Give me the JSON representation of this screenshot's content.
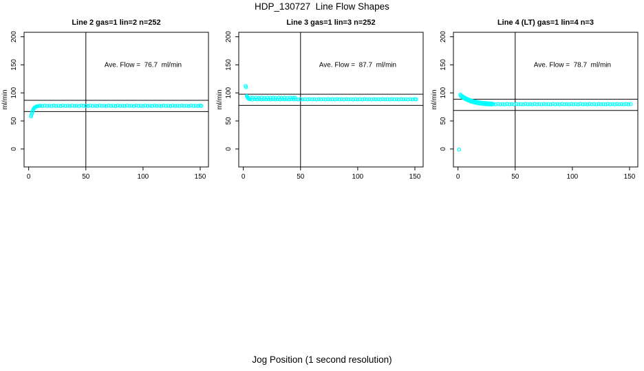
{
  "page": {
    "title": "HDP_130727  Line Flow Shapes",
    "xlabel": "Jog Position (1 second resolution)",
    "background": "#ffffff",
    "text_color": "#000000"
  },
  "chart_data": [
    {
      "type": "scatter",
      "title": "Line 2 gas=1 lin=2 n=252",
      "ylabel": "ml/min",
      "annotation": "Ave. Flow =  76.7  ml/min",
      "annotation_at": {
        "x": 100,
        "y": 150
      },
      "ave_flow_ml_min": 76.7,
      "n": 252,
      "x_ticks": [
        0,
        50,
        100,
        150
      ],
      "y_ticks": [
        0,
        50,
        100,
        150,
        200
      ],
      "x_range": [
        -4,
        157.2
      ],
      "y_range": [
        -32,
        208
      ],
      "vline_x": 50,
      "hlines": [
        86.7,
        66.7
      ],
      "marker_color": "#00FFFF",
      "grid": false,
      "points": [
        [
          2,
          58
        ],
        [
          2.4,
          60.5
        ],
        [
          2.8,
          63
        ],
        [
          3.2,
          65.5
        ],
        [
          3.6,
          68
        ],
        [
          4,
          70
        ],
        [
          4.5,
          72
        ],
        [
          5,
          73.3
        ],
        [
          5.5,
          74.3
        ],
        [
          6,
          75
        ],
        [
          6.6,
          75.6
        ],
        [
          7.2,
          76
        ],
        [
          8,
          76.4
        ],
        [
          9,
          76.7
        ],
        [
          10,
          77.1
        ],
        [
          12,
          76.6
        ],
        [
          14,
          77.3
        ],
        [
          16,
          76.8
        ],
        [
          18,
          77.1
        ],
        [
          20,
          76.6
        ],
        [
          22,
          77.3
        ],
        [
          24,
          76.8
        ],
        [
          26,
          77.1
        ],
        [
          28,
          76.6
        ],
        [
          30,
          77.3
        ],
        [
          32,
          76.8
        ],
        [
          34,
          77.1
        ],
        [
          36,
          76.6
        ],
        [
          38,
          77.3
        ],
        [
          40,
          76.8
        ],
        [
          42,
          77.1
        ],
        [
          44,
          76.6
        ],
        [
          46,
          77.3
        ],
        [
          48,
          76.8
        ],
        [
          50,
          77.1
        ],
        [
          52,
          76.6
        ],
        [
          54,
          77.3
        ],
        [
          56,
          76.8
        ],
        [
          58,
          77.1
        ],
        [
          60,
          76.6
        ],
        [
          62,
          77.3
        ],
        [
          64,
          76.8
        ],
        [
          66,
          77.1
        ],
        [
          68,
          76.6
        ],
        [
          70,
          77.3
        ],
        [
          72,
          76.8
        ],
        [
          74,
          77.1
        ],
        [
          76,
          76.6
        ],
        [
          78,
          77.3
        ],
        [
          80,
          76.8
        ],
        [
          82,
          77.1
        ],
        [
          84,
          76.6
        ],
        [
          86,
          77.3
        ],
        [
          88,
          76.8
        ],
        [
          90,
          77.1
        ],
        [
          92,
          76.6
        ],
        [
          94,
          77.3
        ],
        [
          96,
          76.8
        ],
        [
          98,
          77.1
        ],
        [
          100,
          76.6
        ],
        [
          102,
          77.3
        ],
        [
          104,
          76.8
        ],
        [
          106,
          77.1
        ],
        [
          108,
          76.6
        ],
        [
          110,
          77.3
        ],
        [
          112,
          76.8
        ],
        [
          114,
          77.1
        ],
        [
          116,
          76.6
        ],
        [
          118,
          77.3
        ],
        [
          120,
          76.8
        ],
        [
          122,
          77.1
        ],
        [
          124,
          76.6
        ],
        [
          126,
          77.3
        ],
        [
          128,
          76.8
        ],
        [
          130,
          77.1
        ],
        [
          132,
          76.6
        ],
        [
          134,
          77.3
        ],
        [
          136,
          76.8
        ],
        [
          138,
          77.1
        ],
        [
          140,
          76.6
        ],
        [
          142,
          77.3
        ],
        [
          144,
          76.8
        ],
        [
          146,
          77.1
        ],
        [
          148,
          76.6
        ],
        [
          150,
          77.3
        ],
        [
          151,
          76.9
        ]
      ]
    },
    {
      "type": "scatter",
      "title": "Line 3 gas=1 lin=3 n=252",
      "ylabel": "ml/min",
      "annotation": "Ave. Flow =  87.7  ml/min",
      "annotation_at": {
        "x": 100,
        "y": 150
      },
      "ave_flow_ml_min": 87.7,
      "n": 252,
      "x_ticks": [
        0,
        50,
        100,
        150
      ],
      "y_ticks": [
        0,
        50,
        100,
        150,
        200
      ],
      "x_range": [
        -4,
        157.2
      ],
      "y_range": [
        -32,
        208
      ],
      "vline_x": 50,
      "hlines": [
        97.7,
        77.7
      ],
      "marker_color": "#00FFFF",
      "grid": false,
      "points": [
        [
          2,
          112.5
        ],
        [
          2.4,
          110
        ],
        [
          3,
          94.5
        ],
        [
          3.4,
          92.8
        ],
        [
          3.8,
          91.5
        ],
        [
          4.2,
          90.3
        ],
        [
          4.6,
          89.6
        ],
        [
          5,
          89.1
        ],
        [
          6,
          91.8
        ],
        [
          8.5,
          91.4
        ],
        [
          11,
          91.7
        ],
        [
          13.5,
          91.3
        ],
        [
          16,
          91.6
        ],
        [
          18.5,
          91.2
        ],
        [
          21,
          91.6
        ],
        [
          23.5,
          91.3
        ],
        [
          26,
          91.6
        ],
        [
          28.5,
          91.2
        ],
        [
          31,
          91.5
        ],
        [
          33.5,
          91.3
        ],
        [
          36,
          91.6
        ],
        [
          38.5,
          91.2
        ],
        [
          41,
          91.5
        ],
        [
          43.5,
          91.3
        ],
        [
          45,
          91.5
        ],
        [
          6,
          88.7
        ],
        [
          8,
          88.2
        ],
        [
          10,
          88.9
        ],
        [
          12,
          88.4
        ],
        [
          14,
          88.7
        ],
        [
          16,
          88.2
        ],
        [
          18,
          88.9
        ],
        [
          20,
          88.4
        ],
        [
          22,
          88.7
        ],
        [
          24,
          88.2
        ],
        [
          26,
          88.9
        ],
        [
          28,
          88.4
        ],
        [
          30,
          88.7
        ],
        [
          32,
          88.2
        ],
        [
          34,
          88.9
        ],
        [
          36,
          88.4
        ],
        [
          38,
          88.7
        ],
        [
          40,
          88.2
        ],
        [
          42,
          88.9
        ],
        [
          44,
          88.4
        ],
        [
          46,
          88.7
        ],
        [
          48,
          88.2
        ],
        [
          50,
          88.9
        ],
        [
          52,
          88.4
        ],
        [
          54,
          88.7
        ],
        [
          56,
          88.2
        ],
        [
          58,
          88.9
        ],
        [
          60,
          88.4
        ],
        [
          62,
          88.7
        ],
        [
          64,
          88.2
        ],
        [
          66,
          88.9
        ],
        [
          68,
          88.4
        ],
        [
          70,
          88.7
        ],
        [
          72,
          88.2
        ],
        [
          74,
          88.9
        ],
        [
          76,
          88.4
        ],
        [
          78,
          88.7
        ],
        [
          80,
          88.2
        ],
        [
          82,
          88.9
        ],
        [
          84,
          88.4
        ],
        [
          86,
          88.7
        ],
        [
          88,
          88.2
        ],
        [
          90,
          88.9
        ],
        [
          92,
          88.4
        ],
        [
          94,
          88.7
        ],
        [
          96,
          88.2
        ],
        [
          98,
          88.9
        ],
        [
          100,
          88.4
        ],
        [
          102,
          88.7
        ],
        [
          104,
          88.2
        ],
        [
          106,
          88.9
        ],
        [
          108,
          88.4
        ],
        [
          110,
          88.7
        ],
        [
          112,
          88.2
        ],
        [
          114,
          88.9
        ],
        [
          116,
          88.4
        ],
        [
          118,
          88.7
        ],
        [
          120,
          88.2
        ],
        [
          122,
          88.9
        ],
        [
          124,
          88.4
        ],
        [
          126,
          88.7
        ],
        [
          128,
          88.2
        ],
        [
          130,
          88.9
        ],
        [
          132,
          88.4
        ],
        [
          134,
          88.7
        ],
        [
          136,
          88.2
        ],
        [
          138,
          88.9
        ],
        [
          140,
          88.4
        ],
        [
          142,
          88.7
        ],
        [
          144,
          88.2
        ],
        [
          146,
          88.9
        ],
        [
          148,
          88.4
        ],
        [
          150,
          88.7
        ],
        [
          151,
          88.5
        ]
      ]
    },
    {
      "type": "scatter",
      "title": "Line 4 (LT) gas=1 lin=4 n=3",
      "ylabel": "ml/min",
      "annotation": "Ave. Flow =  78.7  ml/min",
      "annotation_at": {
        "x": 100,
        "y": 150
      },
      "ave_flow_ml_min": 78.7,
      "n": 3,
      "x_ticks": [
        0,
        50,
        100,
        150
      ],
      "y_ticks": [
        0,
        50,
        100,
        150,
        200
      ],
      "x_range": [
        -4,
        157.2
      ],
      "y_range": [
        -32,
        208
      ],
      "vline_x": 50,
      "hlines": [
        88.7,
        68.7
      ],
      "marker_color": "#00FFFF",
      "grid": false,
      "points": [
        [
          1,
          -1
        ],
        [
          2,
          97
        ],
        [
          3,
          95.4
        ],
        [
          4,
          93.9
        ],
        [
          5,
          92.6
        ],
        [
          6,
          91.4
        ],
        [
          7,
          90.3
        ],
        [
          8,
          89.3
        ],
        [
          9,
          88.4
        ],
        [
          10,
          87.6
        ],
        [
          11,
          86.9
        ],
        [
          12,
          86.2
        ],
        [
          13,
          85.6
        ],
        [
          14,
          85.1
        ],
        [
          15,
          84.6
        ],
        [
          16,
          84.2
        ],
        [
          17,
          83.8
        ],
        [
          18,
          83.4
        ],
        [
          19,
          83.1
        ],
        [
          20,
          82.8
        ],
        [
          21,
          82.5
        ],
        [
          22,
          82.3
        ],
        [
          23,
          82.1
        ],
        [
          24,
          81.9
        ],
        [
          25,
          81.7
        ],
        [
          26,
          81.5
        ],
        [
          27,
          81.4
        ],
        [
          28,
          81.2
        ],
        [
          29,
          81.1
        ],
        [
          30,
          81
        ],
        [
          2.5,
          94.2
        ],
        [
          3.5,
          92.6
        ],
        [
          4.5,
          91.2
        ],
        [
          5.5,
          90
        ],
        [
          6.5,
          88.8
        ],
        [
          7.5,
          87.8
        ],
        [
          8.5,
          86.8
        ],
        [
          9.5,
          86
        ],
        [
          10.5,
          85.2
        ],
        [
          11.5,
          84.5
        ],
        [
          12.5,
          83.9
        ],
        [
          13.5,
          83.4
        ],
        [
          14.5,
          82.9
        ],
        [
          15.5,
          82.4
        ],
        [
          16.5,
          82
        ],
        [
          17.5,
          81.6
        ],
        [
          18.5,
          81.3
        ],
        [
          19.5,
          81
        ],
        [
          20.5,
          80.7
        ],
        [
          21.5,
          80.4
        ],
        [
          22.5,
          80.2
        ],
        [
          23.5,
          80
        ],
        [
          24.5,
          79.8
        ],
        [
          25.5,
          79.7
        ],
        [
          26.5,
          79.5
        ],
        [
          27.5,
          79.4
        ],
        [
          28.5,
          79.3
        ],
        [
          29.5,
          79.2
        ],
        [
          31,
          80.1
        ],
        [
          33,
          79.4
        ],
        [
          35,
          80.3
        ],
        [
          37,
          79.7
        ],
        [
          39,
          80.1
        ],
        [
          41,
          79.4
        ],
        [
          43,
          80.3
        ],
        [
          45,
          79.7
        ],
        [
          47,
          80.1
        ],
        [
          49,
          79.4
        ],
        [
          51,
          80.3
        ],
        [
          53,
          79.7
        ],
        [
          55,
          80.1
        ],
        [
          57,
          79.4
        ],
        [
          59,
          80.3
        ],
        [
          61,
          79.7
        ],
        [
          63,
          80.1
        ],
        [
          65,
          79.4
        ],
        [
          67,
          80.3
        ],
        [
          69,
          79.7
        ],
        [
          71,
          80.1
        ],
        [
          73,
          79.4
        ],
        [
          75,
          80.3
        ],
        [
          77,
          79.7
        ],
        [
          79,
          80.1
        ],
        [
          81,
          79.4
        ],
        [
          83,
          80.3
        ],
        [
          85,
          79.7
        ],
        [
          87,
          80.1
        ],
        [
          89,
          79.4
        ],
        [
          91,
          80.3
        ],
        [
          93,
          79.7
        ],
        [
          95,
          80.1
        ],
        [
          97,
          79.4
        ],
        [
          99,
          80.3
        ],
        [
          101,
          79.7
        ],
        [
          103,
          80.1
        ],
        [
          105,
          79.4
        ],
        [
          107,
          80.3
        ],
        [
          109,
          79.7
        ],
        [
          111,
          80.1
        ],
        [
          113,
          79.4
        ],
        [
          115,
          80.3
        ],
        [
          117,
          79.7
        ],
        [
          119,
          80.1
        ],
        [
          121,
          79.4
        ],
        [
          123,
          80.3
        ],
        [
          125,
          79.7
        ],
        [
          127,
          80.1
        ],
        [
          129,
          79.4
        ],
        [
          131,
          80.3
        ],
        [
          133,
          79.7
        ],
        [
          135,
          80.1
        ],
        [
          137,
          79.4
        ],
        [
          139,
          80.3
        ],
        [
          141,
          79.7
        ],
        [
          143,
          80.1
        ],
        [
          145,
          79.4
        ],
        [
          147,
          80.3
        ],
        [
          149,
          79.7
        ],
        [
          151,
          80
        ]
      ]
    }
  ]
}
